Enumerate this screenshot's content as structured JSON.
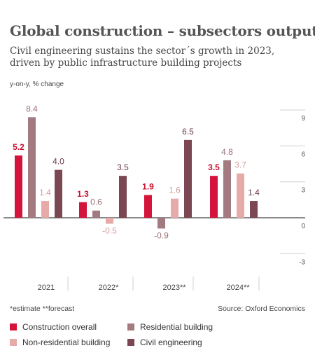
{
  "header": {
    "title": "Global construction – subsectors output",
    "subtitle": "Civil engineering sustains the sector´s growth in 2023, driven by public infrastructure building projects",
    "unit": "y-on-y, % change"
  },
  "footer": {
    "note": "*estimate  **forecast",
    "source": "Source: Oxford Economics"
  },
  "colors": {
    "construction_overall": "#d4143a",
    "residential_building": "#a27a7f",
    "non_residential_building": "#e6aaa8",
    "civil_engineering": "#7b4752",
    "label_red": "#c8102e",
    "label_res": "#9c6f74",
    "label_nonres": "#d39c9c",
    "label_civil": "#6d3a45"
  },
  "chart_data": {
    "type": "bar",
    "categories": [
      "2021",
      "2022*",
      "2023**",
      "2024**"
    ],
    "series": [
      {
        "name": "Construction overall",
        "values": [
          5.2,
          1.3,
          1.9,
          3.5
        ]
      },
      {
        "name": "Residential building",
        "values": [
          8.4,
          0.6,
          -0.9,
          4.8
        ]
      },
      {
        "name": "Non-residential building",
        "values": [
          1.4,
          -0.5,
          1.6,
          3.7
        ]
      },
      {
        "name": "Civil engineering",
        "values": [
          4.0,
          3.5,
          6.5,
          1.4
        ]
      }
    ],
    "value_labels": [
      [
        "5.2",
        "1.3",
        "1.9",
        "3.5"
      ],
      [
        "8.4",
        "0.6",
        "-0.9",
        "4.8"
      ],
      [
        "1.4",
        "-0.5",
        "1.6",
        "3.7"
      ],
      [
        "4.0",
        "3.5",
        "6.5",
        "1.4"
      ]
    ],
    "y_ticks": [
      9,
      6,
      3,
      0,
      -3
    ],
    "y_tick_labels": [
      "9",
      "6",
      "3",
      "0",
      "-3"
    ],
    "ylim": [
      -3,
      9
    ],
    "grid": true,
    "legend_position": "bottom"
  },
  "legend": {
    "items": [
      {
        "label": "Construction overall"
      },
      {
        "label": "Residential building"
      },
      {
        "label": "Non-residential building"
      },
      {
        "label": "Civil engineering"
      }
    ]
  }
}
